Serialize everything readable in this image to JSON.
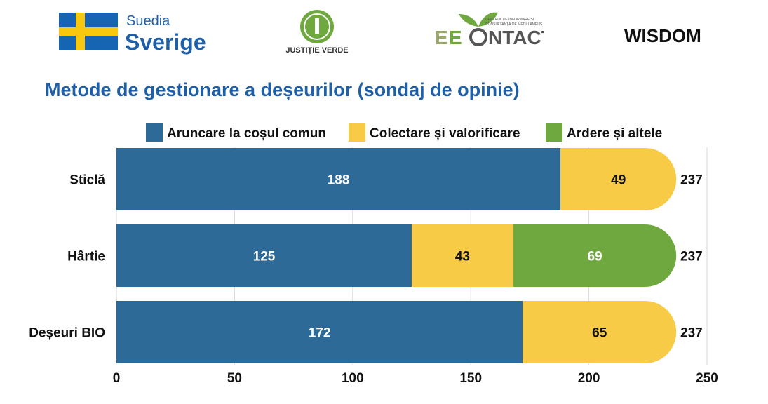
{
  "logos": {
    "sweden_line1": "Suedia",
    "sweden_line2": "Sverige",
    "justitie": "JUSTIȚIE VERDE",
    "ecocontact_small1": "CENTRUL DE INFORMARE ȘI",
    "ecocontact_small2": "CONSULTANȚĂ DE MEDIU AMPUS",
    "ecocontact_left": "E",
    "ecocontact_right": "NTACT",
    "wisdom": "WISDOM"
  },
  "colors": {
    "title": "#1f5fa8",
    "series_blue": "#2d6a98",
    "series_yellow": "#f8cb46",
    "series_green": "#6fa83e",
    "sweden_blue": "#1565b3",
    "sweden_yellow": "#f9c80e"
  },
  "chart_data": {
    "type": "bar",
    "orientation": "horizontal",
    "stacked": true,
    "title": "Metode de gestionare a deșeurilor (sondaj de opinie)",
    "categories": [
      "Sticlă",
      "Hârtie",
      "Deșeuri BIO"
    ],
    "series": [
      {
        "name": "Aruncare la coșul comun",
        "values": [
          188,
          125,
          172
        ],
        "color": "#2d6a98",
        "label_color": "#ffffff"
      },
      {
        "name": "Colectare și valorificare",
        "values": [
          49,
          43,
          65
        ],
        "color": "#f8cb46",
        "label_color": "#111111"
      },
      {
        "name": "Ardere și altele",
        "values": [
          0,
          69,
          0
        ],
        "color": "#6fa83e",
        "label_color": "#ffffff"
      }
    ],
    "totals": [
      "237",
      "237",
      "237"
    ],
    "xlim": [
      0,
      250
    ],
    "xticks": [
      "0",
      "50",
      "100",
      "150",
      "200",
      "250"
    ],
    "grid": true,
    "legend": "top"
  }
}
